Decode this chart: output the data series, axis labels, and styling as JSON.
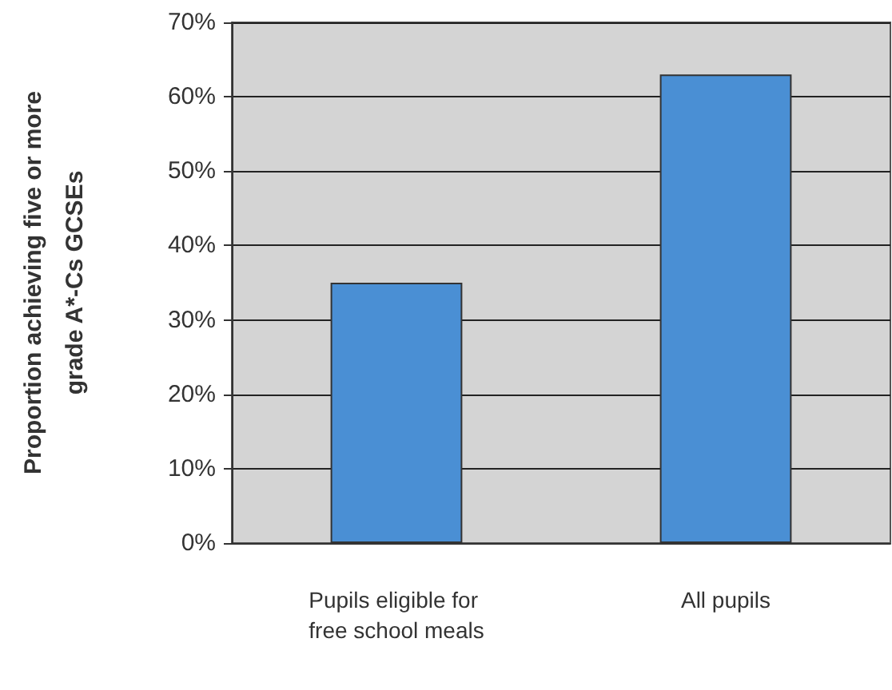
{
  "chart_data": {
    "type": "bar",
    "ylabel": "Proportion achieving five or more\ngrade A*-Cs GCSEs",
    "categories": [
      "Pupils eligible for free school meals",
      "All pupils"
    ],
    "values": [
      35,
      63
    ],
    "color": "#4a8fd4",
    "ylim": [
      0,
      70
    ],
    "yticks": [
      {
        "value": 0,
        "label": "0%"
      },
      {
        "value": 10,
        "label": "10%"
      },
      {
        "value": 20,
        "label": "20%"
      },
      {
        "value": 30,
        "label": "30%"
      },
      {
        "value": 40,
        "label": "40%"
      },
      {
        "value": 50,
        "label": "50%"
      },
      {
        "value": 60,
        "label": "60%"
      },
      {
        "value": 70,
        "label": "70%"
      }
    ],
    "grid": "y"
  }
}
